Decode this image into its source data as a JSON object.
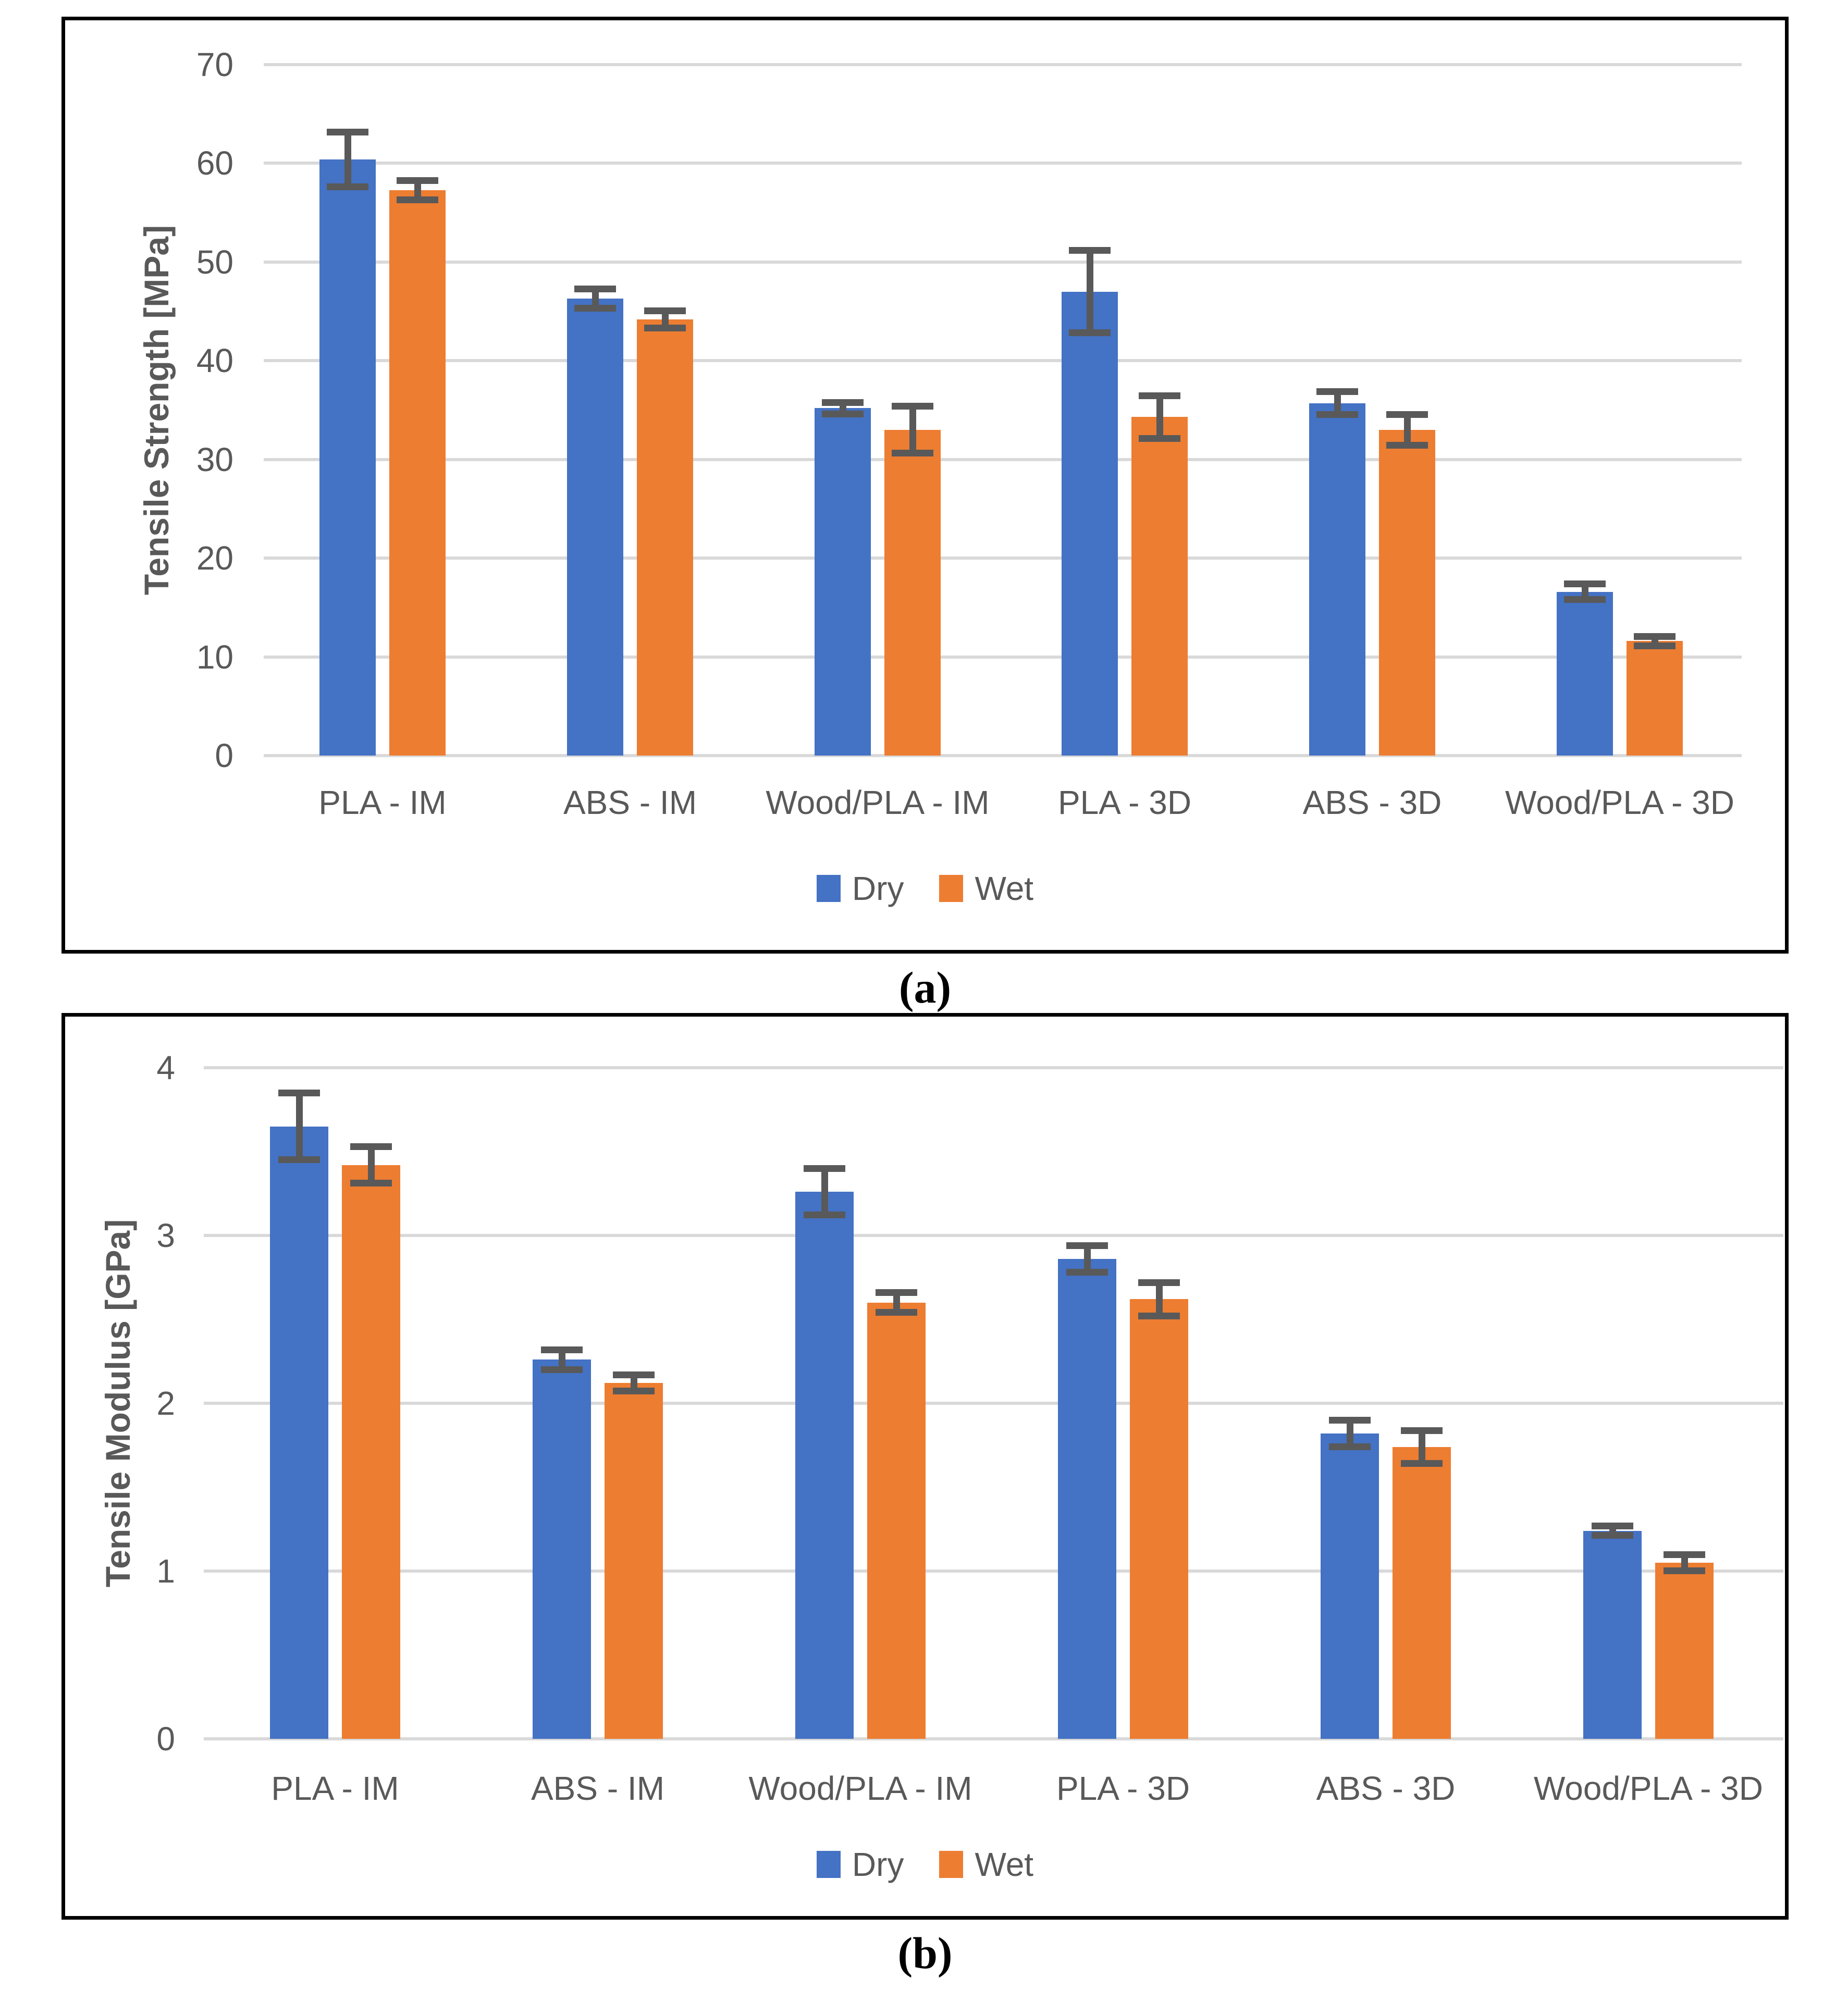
{
  "page": {
    "background": "#ffffff"
  },
  "colors": {
    "dry": "#4472C4",
    "wet": "#ED7D31",
    "gridline": "#D9D9D9",
    "error_bar": "#595959",
    "axis_text": "#595959",
    "panel_border": "#000000",
    "caption_text": "#000000"
  },
  "panels": [
    {
      "caption": "(a)"
    },
    {
      "caption": "(b)"
    }
  ],
  "chart_data": [
    {
      "type": "bar",
      "title": "",
      "xlabel": "",
      "ylabel": "Tensile Strength [MPa]",
      "ylim": [
        0,
        70
      ],
      "yticks": [
        0,
        10,
        20,
        30,
        40,
        50,
        60,
        70
      ],
      "grid": true,
      "legend_position": "bottom",
      "categories": [
        "PLA - IM",
        "ABS - IM",
        "Wood/PLA - IM",
        "PLA - 3D",
        "ABS - 3D",
        "Wood/PLA - 3D"
      ],
      "series": [
        {
          "name": "Dry",
          "color": "#4472C4",
          "values": [
            60.4,
            46.3,
            35.2,
            47.0,
            35.7,
            16.6
          ],
          "errors": [
            2.8,
            1.0,
            0.6,
            4.2,
            1.2,
            0.8
          ]
        },
        {
          "name": "Wet",
          "color": "#ED7D31",
          "values": [
            57.3,
            44.2,
            33.0,
            34.3,
            33.0,
            11.6
          ],
          "errors": [
            1.0,
            0.9,
            2.4,
            2.2,
            1.6,
            0.5
          ]
        }
      ]
    },
    {
      "type": "bar",
      "title": "",
      "xlabel": "",
      "ylabel": "Tensile Modulus [GPa]",
      "ylim": [
        0,
        4
      ],
      "yticks": [
        0,
        1,
        2,
        3,
        4
      ],
      "grid": true,
      "legend_position": "bottom",
      "categories": [
        "PLA - IM",
        "ABS - IM",
        "Wood/PLA - IM",
        "PLA - 3D",
        "ABS - 3D",
        "Wood/PLA - 3D"
      ],
      "series": [
        {
          "name": "Dry",
          "color": "#4472C4",
          "values": [
            3.65,
            2.26,
            3.26,
            2.86,
            1.82,
            1.24
          ],
          "errors": [
            0.2,
            0.06,
            0.14,
            0.08,
            0.08,
            0.03
          ]
        },
        {
          "name": "Wet",
          "color": "#ED7D31",
          "values": [
            3.42,
            2.12,
            2.6,
            2.62,
            1.74,
            1.05
          ],
          "errors": [
            0.11,
            0.05,
            0.06,
            0.1,
            0.1,
            0.05
          ]
        }
      ]
    }
  ]
}
